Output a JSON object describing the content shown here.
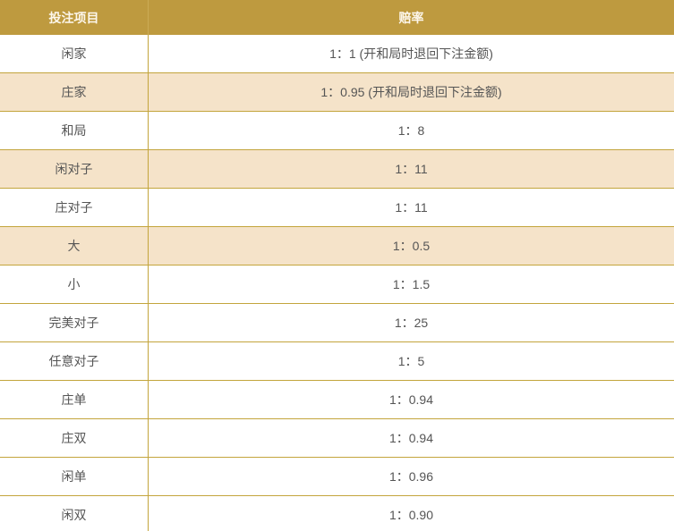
{
  "colors": {
    "header_bg": "#be9a3f",
    "header_text": "#fdf7ec",
    "row_alt_bg": "#f5e3c9",
    "border_gold": "#c3a53c",
    "body_text": "#555555"
  },
  "table": {
    "headers": [
      "投注项目",
      "赔率"
    ],
    "rows": [
      {
        "item": "闲家",
        "odds": "1：1 (开和局时退回下注金额)"
      },
      {
        "item": "庄家",
        "odds": "1：0.95 (开和局时退回下注金额)"
      },
      {
        "item": "和局",
        "odds": "1：8"
      },
      {
        "item": "闲对子",
        "odds": "1：11"
      },
      {
        "item": "庄对子",
        "odds": "1：11"
      },
      {
        "item": "大",
        "odds": "1：0.5"
      },
      {
        "item": "小",
        "odds": "1：1.5"
      },
      {
        "item": "完美对子",
        "odds": "1：25"
      },
      {
        "item": "任意对子",
        "odds": "1：5"
      },
      {
        "item": "庄单",
        "odds": "1：0.94"
      },
      {
        "item": "庄双",
        "odds": "1：0.94"
      },
      {
        "item": "闲单",
        "odds": "1：0.96"
      },
      {
        "item": "闲双",
        "odds": "1：0.90"
      }
    ]
  }
}
